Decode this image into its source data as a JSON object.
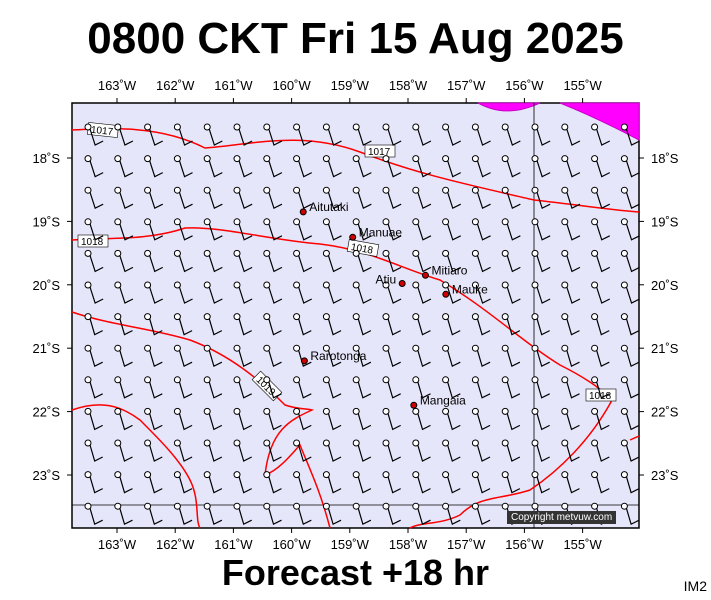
{
  "title": "0800 CKT Fri 15 Aug 2025",
  "subtitle": "Forecast +18 hr",
  "corner_label": "IM2",
  "copyright": "Copyright metvuw.com",
  "colors": {
    "ocean": "#e6e6fa",
    "isobar": "#ff0000",
    "highlight": "#ff00ff",
    "place_dot": "#cc0000"
  },
  "axes": {
    "lon_ticks": [
      "163˚W",
      "162˚W",
      "161˚W",
      "160˚W",
      "159˚W",
      "158˚W",
      "157˚W",
      "156˚W",
      "155˚W"
    ],
    "lat_ticks": [
      "18˚S",
      "19˚S",
      "20˚S",
      "21˚S",
      "22˚S",
      "23˚S"
    ]
  },
  "places": [
    {
      "name": "Aitutaki",
      "lon": -159.8,
      "lat": -18.85
    },
    {
      "name": "Manuae",
      "lon": -158.95,
      "lat": -19.25
    },
    {
      "name": "Atiu",
      "lon": -158.1,
      "lat": -19.98
    },
    {
      "name": "Mitiaro",
      "lon": -157.7,
      "lat": -19.85
    },
    {
      "name": "Mauke",
      "lon": -157.35,
      "lat": -20.15
    },
    {
      "name": "Rarotonga",
      "lon": -159.78,
      "lat": -21.2
    },
    {
      "name": "Mangaia",
      "lon": -157.9,
      "lat": -21.9
    }
  ],
  "isobars": [
    {
      "label": "1017"
    },
    {
      "label": "1017"
    },
    {
      "label": "1018"
    },
    {
      "label": "1018"
    },
    {
      "label": "1019"
    },
    {
      "label": "1018"
    }
  ]
}
